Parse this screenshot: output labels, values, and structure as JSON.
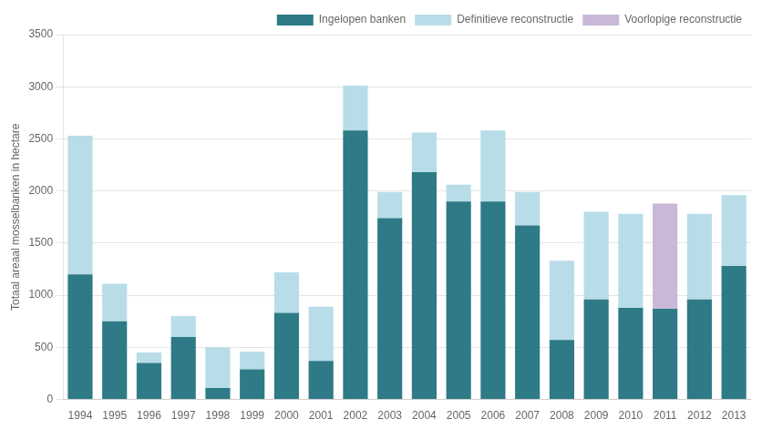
{
  "chart_data": {
    "type": "bar",
    "stacked": true,
    "categories": [
      "1994",
      "1995",
      "1996",
      "1997",
      "1998",
      "1999",
      "2000",
      "2001",
      "2002",
      "2003",
      "2004",
      "2005",
      "2006",
      "2007",
      "2008",
      "2009",
      "2010",
      "2011",
      "2012",
      "2013"
    ],
    "series": [
      {
        "name": "Ingelopen banken",
        "color": "#2e7a87",
        "values": [
          1200,
          750,
          350,
          600,
          110,
          290,
          830,
          370,
          2580,
          1740,
          2180,
          1900,
          1900,
          1670,
          570,
          960,
          880,
          870,
          960,
          1280
        ]
      },
      {
        "name": "Definitieve reconstructie",
        "color": "#b8dde8",
        "values": [
          1330,
          360,
          100,
          200,
          390,
          170,
          390,
          520,
          430,
          250,
          380,
          160,
          680,
          320,
          760,
          840,
          900,
          0,
          820,
          680
        ]
      },
      {
        "name": "Voorlopige reconstructie",
        "color": "#c9b8d8",
        "values": [
          0,
          0,
          0,
          0,
          0,
          0,
          0,
          0,
          0,
          0,
          0,
          0,
          0,
          0,
          0,
          0,
          0,
          1010,
          0,
          0
        ]
      }
    ],
    "ylabel": "Totaal areaal mosselbanken in hectare",
    "ylim": [
      0,
      3500
    ],
    "yticks": [
      0,
      500,
      1000,
      1500,
      2000,
      2500,
      3000,
      3500
    ],
    "grid": true,
    "legend": "upper right"
  }
}
